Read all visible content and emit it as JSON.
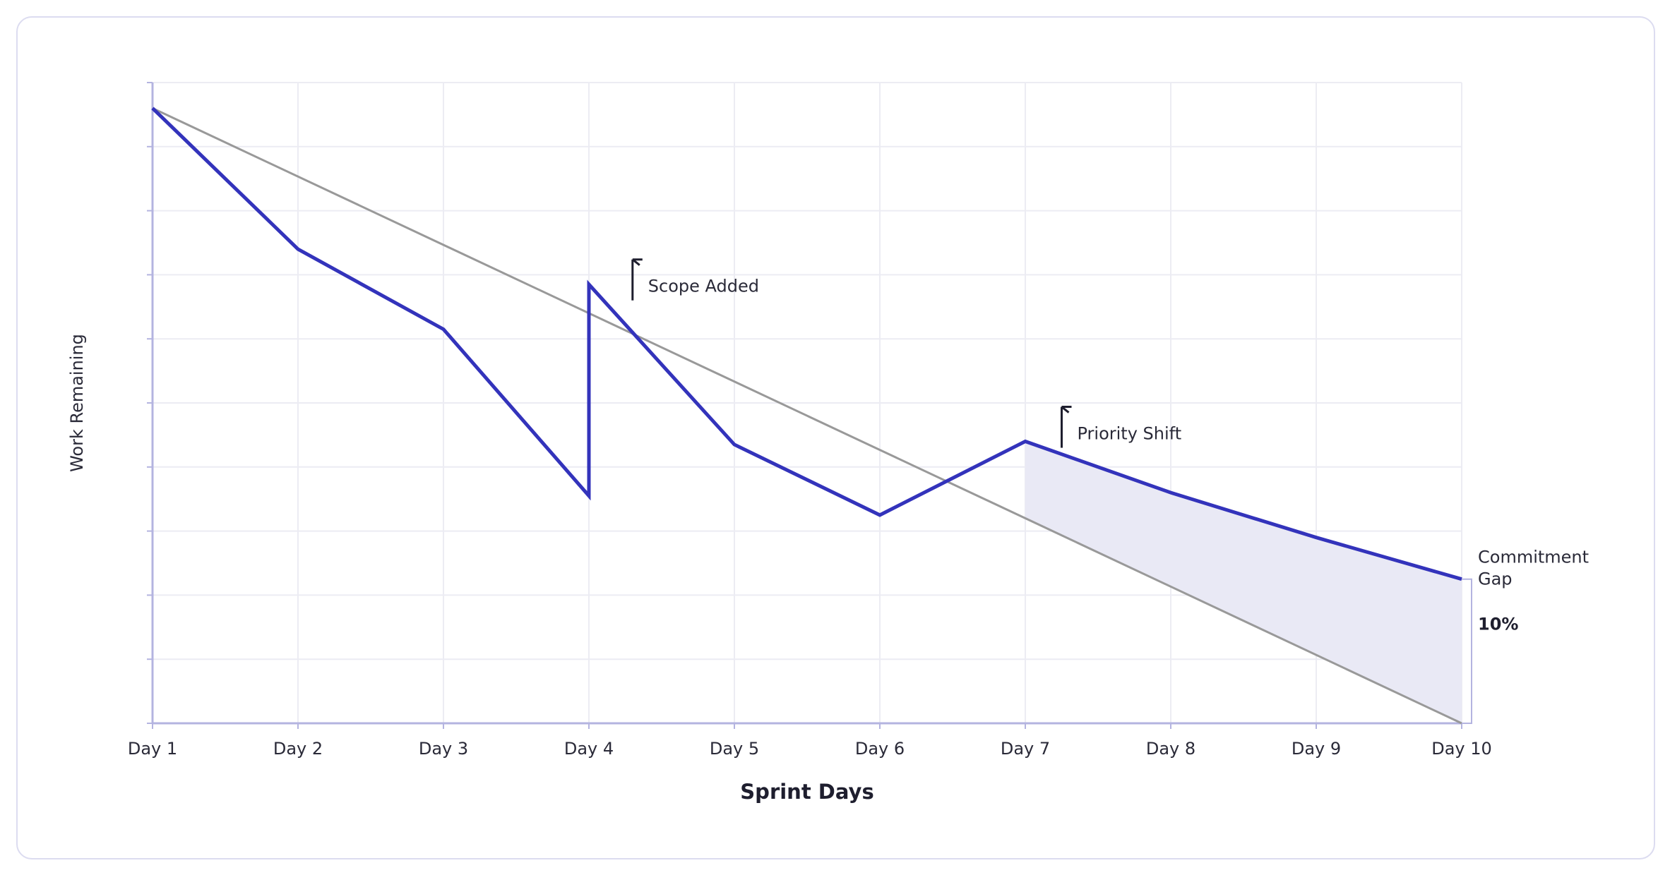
{
  "chart_data": {
    "type": "line",
    "title": "",
    "xlabel": "Sprint Days",
    "ylabel": "Work Remaining",
    "categories": [
      "Day 1",
      "Day 2",
      "Day 3",
      "Day 4",
      "Day 5",
      "Day 6",
      "Day 7",
      "Day 8",
      "Day 9",
      "Day 10"
    ],
    "ylim": [
      0,
      100
    ],
    "y_ticks_visible": false,
    "grid": true,
    "series": [
      {
        "role": "ideal",
        "color": "#999999",
        "points": [
          [
            1,
            96
          ],
          [
            10,
            0
          ]
        ]
      },
      {
        "role": "actual",
        "color": "#3333bb",
        "points": [
          [
            1,
            96
          ],
          [
            2,
            74
          ],
          [
            3,
            61.5
          ],
          [
            4,
            35.5
          ],
          [
            4,
            68.5
          ],
          [
            5,
            43.5
          ],
          [
            6,
            32.5
          ],
          [
            7,
            44
          ],
          [
            8,
            36
          ],
          [
            9,
            29
          ],
          [
            10,
            22.5
          ]
        ]
      }
    ],
    "shaded_gap": {
      "from_day": 7,
      "to_day": 10,
      "color": "#e9e9f5"
    },
    "annotations": [
      {
        "text": "Scope Added",
        "day": 4.3,
        "value": 66,
        "icon": "flag-icon"
      },
      {
        "text": "Priority Shift",
        "day": 7.25,
        "value": 43,
        "icon": "flag-icon"
      }
    ],
    "gap_label": {
      "text": "Commitment Gap",
      "value_text": "10%"
    },
    "colors": {
      "accent": "#3333bb",
      "ideal": "#999999",
      "grid": "#ececf3",
      "axis": "#b4b4e0",
      "shade": "#e9e9f5"
    }
  }
}
